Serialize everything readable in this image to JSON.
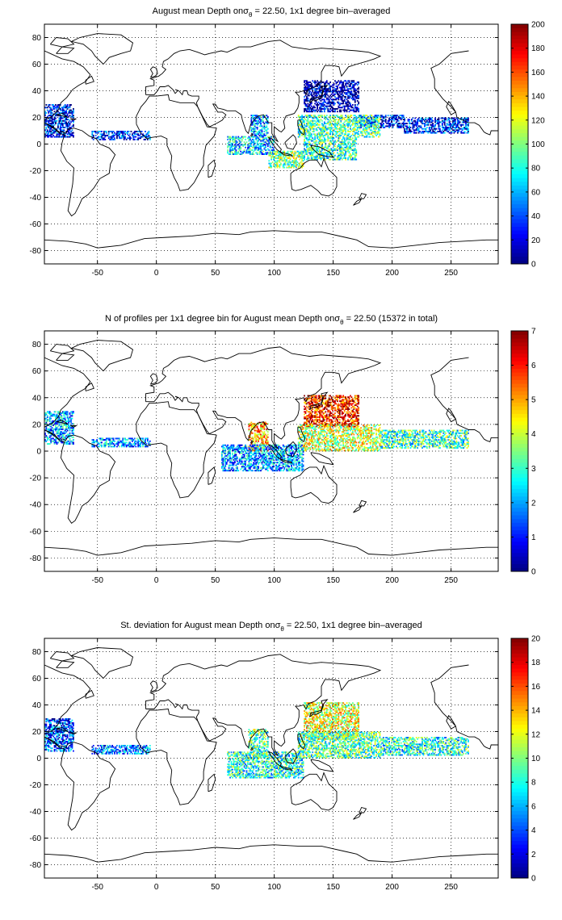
{
  "figure": {
    "panels": [
      {
        "title_pre": "August mean Depth on",
        "title_sigma": "σ",
        "title_sub": "θ",
        "title_post": " = 22.50, 1x1 degree bin–averaged"
      },
      {
        "title_pre": "N of profiles per 1x1 degree bin for August mean Depth on",
        "title_sigma": "σ",
        "title_sub": "θ",
        "title_post": " = 22.50 (15372 in total)"
      },
      {
        "title_pre": "St. deviation for August mean Depth on",
        "title_sigma": "σ",
        "title_sub": "θ",
        "title_post": " = 22.50, 1x1 degree bin–averaged"
      }
    ]
  },
  "chart_data": [
    {
      "type": "heatmap",
      "title": "August mean Depth on σθ = 22.50, 1x1 degree bin–averaged",
      "xlabel": "",
      "ylabel": "",
      "xlim": [
        -95,
        290
      ],
      "ylim": [
        -90,
        90
      ],
      "x_ticks": [
        -50,
        0,
        50,
        100,
        150,
        200,
        250
      ],
      "y_ticks": [
        -80,
        -60,
        -40,
        -20,
        0,
        20,
        40,
        60,
        80
      ],
      "grid": true,
      "colormap": "jet",
      "colorbar": {
        "min": 0,
        "max": 200,
        "ticks": [
          0,
          20,
          40,
          60,
          80,
          100,
          120,
          140,
          160,
          180,
          200
        ],
        "placement": "right"
      },
      "regions": [
        {
          "lon": [
            125,
            172
          ],
          "lat": [
            24,
            48
          ],
          "value": 10
        },
        {
          "lon": [
            172,
            210
          ],
          "lat": [
            12,
            22
          ],
          "value": 25
        },
        {
          "lon": [
            210,
            265
          ],
          "lat": [
            8,
            20
          ],
          "value": 30
        },
        {
          "lon": [
            120,
            190
          ],
          "lat": [
            5,
            22
          ],
          "value": 90
        },
        {
          "lon": [
            125,
            170
          ],
          "lat": [
            -12,
            5
          ],
          "value": 85
        },
        {
          "lon": [
            60,
            100
          ],
          "lat": [
            -8,
            6
          ],
          "value": 65
        },
        {
          "lon": [
            80,
            95
          ],
          "lat": [
            5,
            22
          ],
          "value": 55
        },
        {
          "lon": [
            95,
            125
          ],
          "lat": [
            -18,
            -5
          ],
          "value": 100
        },
        {
          "lon": [
            -95,
            -70
          ],
          "lat": [
            5,
            30
          ],
          "value": 25
        },
        {
          "lon": [
            -55,
            -5
          ],
          "lat": [
            3,
            10
          ],
          "value": 30
        }
      ]
    },
    {
      "type": "heatmap",
      "title": "N of profiles per 1x1 degree bin for August mean Depth on σθ = 22.50 (15372 in total)",
      "xlabel": "",
      "ylabel": "",
      "total_profiles": 15372,
      "xlim": [
        -95,
        290
      ],
      "ylim": [
        -90,
        90
      ],
      "x_ticks": [
        -50,
        0,
        50,
        100,
        150,
        200,
        250
      ],
      "y_ticks": [
        -80,
        -60,
        -40,
        -20,
        0,
        20,
        40,
        60,
        80
      ],
      "grid": true,
      "colormap": "jet",
      "colorbar": {
        "min": 0,
        "max": 7,
        "ticks": [
          0,
          1,
          2,
          3,
          4,
          5,
          6,
          7
        ],
        "placement": "right"
      },
      "regions": [
        {
          "lon": [
            125,
            172
          ],
          "lat": [
            18,
            42
          ],
          "value": 6
        },
        {
          "lon": [
            120,
            190
          ],
          "lat": [
            0,
            20
          ],
          "value": 4
        },
        {
          "lon": [
            190,
            265
          ],
          "lat": [
            2,
            16
          ],
          "value": 3
        },
        {
          "lon": [
            78,
            95
          ],
          "lat": [
            0,
            22
          ],
          "value": 5
        },
        {
          "lon": [
            55,
            125
          ],
          "lat": [
            -15,
            5
          ],
          "value": 2
        },
        {
          "lon": [
            -95,
            -70
          ],
          "lat": [
            5,
            30
          ],
          "value": 2
        },
        {
          "lon": [
            -55,
            -5
          ],
          "lat": [
            3,
            10
          ],
          "value": 2
        }
      ]
    },
    {
      "type": "heatmap",
      "title": "St. deviation for August mean Depth on σθ = 22.50, 1x1 degree bin–averaged",
      "xlabel": "",
      "ylabel": "",
      "xlim": [
        -95,
        290
      ],
      "ylim": [
        -90,
        90
      ],
      "x_ticks": [
        -50,
        0,
        50,
        100,
        150,
        200,
        250
      ],
      "y_ticks": [
        -80,
        -60,
        -40,
        -20,
        0,
        20,
        40,
        60,
        80
      ],
      "grid": true,
      "colormap": "jet",
      "colorbar": {
        "min": 0,
        "max": 20,
        "ticks": [
          0,
          2,
          4,
          6,
          8,
          10,
          12,
          14,
          16,
          18,
          20
        ],
        "placement": "right"
      },
      "regions": [
        {
          "lon": [
            125,
            172
          ],
          "lat": [
            14,
            42
          ],
          "value": 12
        },
        {
          "lon": [
            120,
            190
          ],
          "lat": [
            0,
            20
          ],
          "value": 9
        },
        {
          "lon": [
            190,
            265
          ],
          "lat": [
            2,
            16
          ],
          "value": 8
        },
        {
          "lon": [
            60,
            125
          ],
          "lat": [
            -15,
            5
          ],
          "value": 8
        },
        {
          "lon": [
            78,
            95
          ],
          "lat": [
            0,
            22
          ],
          "value": 9
        },
        {
          "lon": [
            -95,
            -70
          ],
          "lat": [
            5,
            30
          ],
          "value": 4
        },
        {
          "lon": [
            -55,
            -5
          ],
          "lat": [
            3,
            10
          ],
          "value": 5
        }
      ]
    }
  ]
}
